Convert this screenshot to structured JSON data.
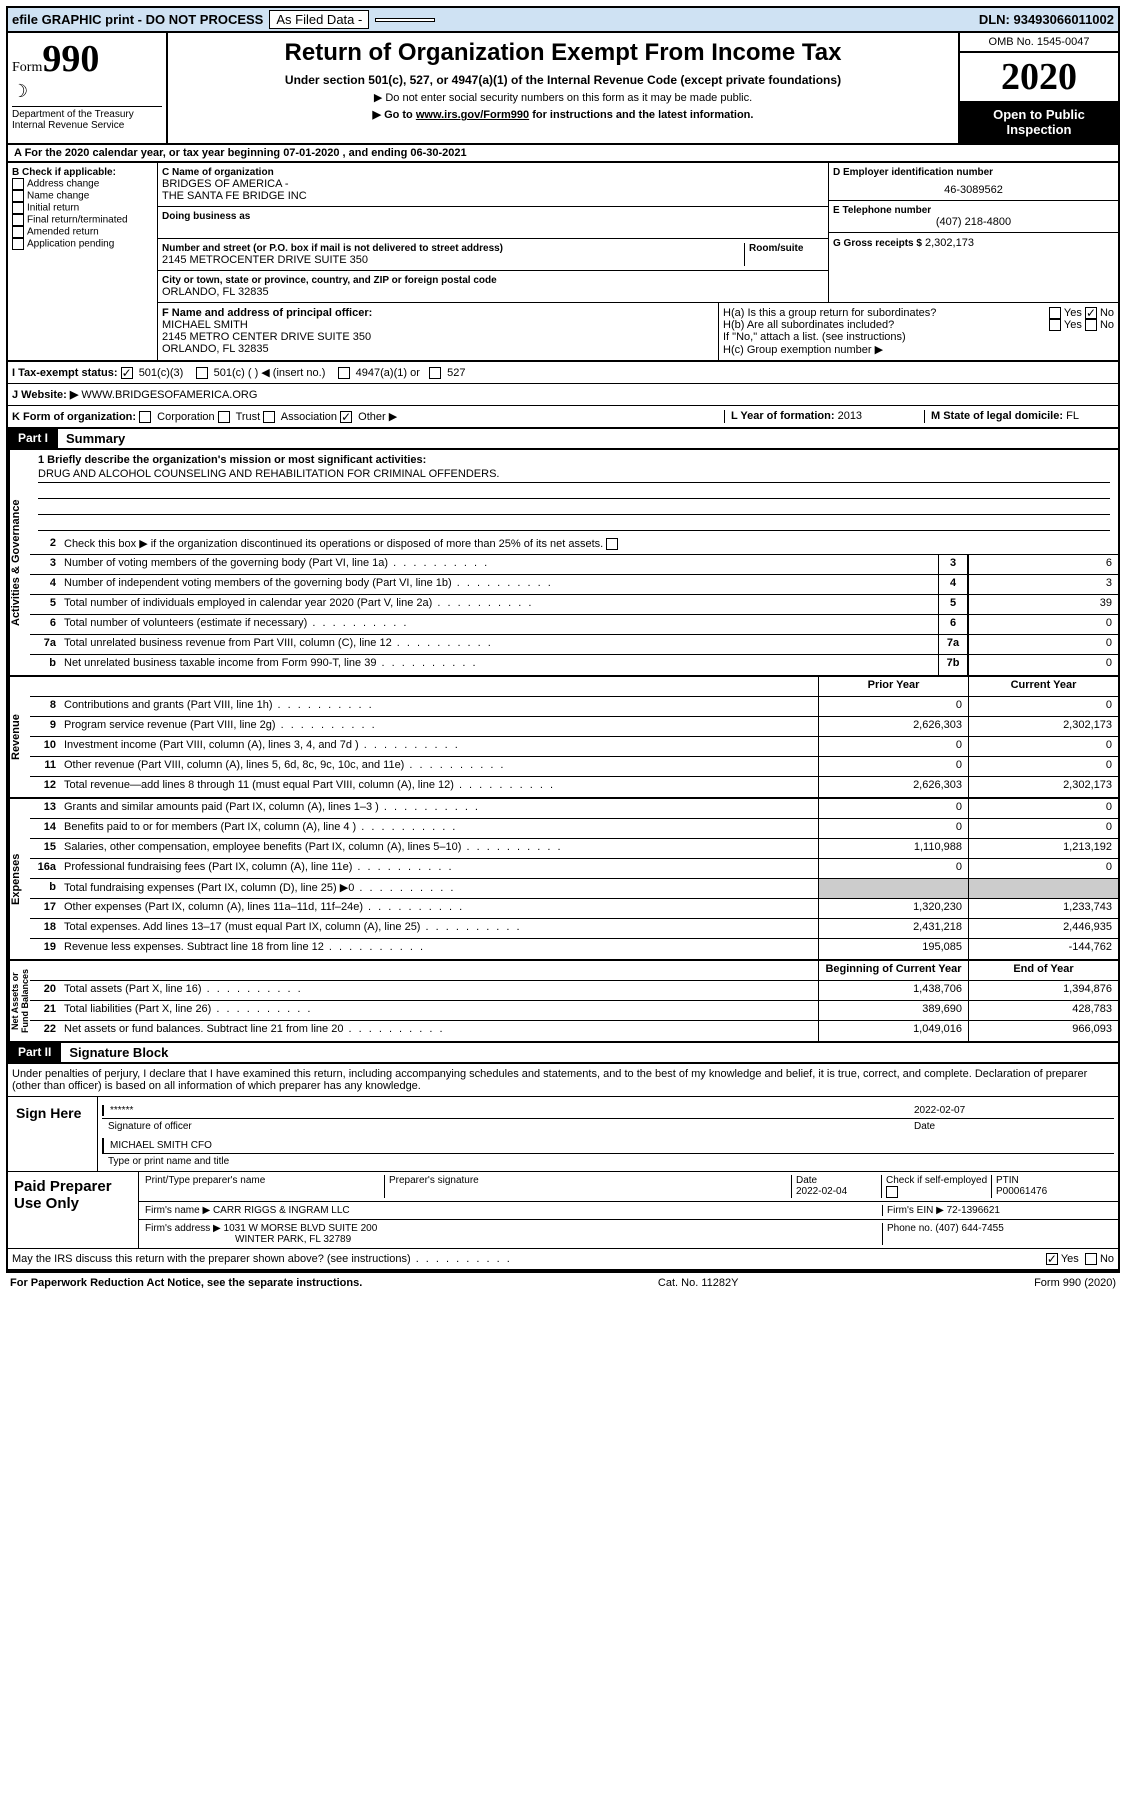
{
  "topbar": {
    "efile": "efile GRAPHIC print - DO NOT PROCESS",
    "asfiled": "As Filed Data -",
    "dln_label": "DLN:",
    "dln": "93493066011002"
  },
  "header": {
    "form_label": "Form",
    "form_num": "990",
    "dept1": "Department of the Treasury",
    "dept2": "Internal Revenue Service",
    "title": "Return of Organization Exempt From Income Tax",
    "sub": "Under section 501(c), 527, or 4947(a)(1) of the Internal Revenue Code (except private foundations)",
    "sub2a": "▶ Do not enter social security numbers on this form as it may be made public.",
    "sub2b": "▶ Go to ",
    "sub2b_link": "www.irs.gov/Form990",
    "sub2b_tail": " for instructions and the latest information.",
    "omb": "OMB No. 1545-0047",
    "year": "2020",
    "open": "Open to Public Inspection"
  },
  "row_a": "A  For the 2020 calendar year, or tax year beginning 07-01-2020   , and ending 06-30-2021",
  "section_b": {
    "hdr": "B Check if applicable:",
    "items": [
      "Address change",
      "Name change",
      "Initial return",
      "Final return/terminated",
      "Amended return",
      "Application pending"
    ]
  },
  "section_c": {
    "lbl_name": "C Name of organization",
    "name1": "BRIDGES OF AMERICA -",
    "name2": "THE SANTA FE BRIDGE INC",
    "lbl_dba": "Doing business as",
    "lbl_addr": "Number and street (or P.O. box if mail is not delivered to street address)",
    "lbl_room": "Room/suite",
    "addr": "2145 METROCENTER DRIVE SUITE 350",
    "lbl_city": "City or town, state or province, country, and ZIP or foreign postal code",
    "city": "ORLANDO, FL  32835"
  },
  "section_d": {
    "lbl": "D Employer identification number",
    "val": "46-3089562"
  },
  "section_e": {
    "lbl": "E Telephone number",
    "val": "(407) 218-4800"
  },
  "section_g": {
    "lbl": "G Gross receipts $",
    "val": "2,302,173"
  },
  "section_f": {
    "lbl": "F  Name and address of principal officer:",
    "name": "MICHAEL SMITH",
    "addr1": "2145 METRO CENTER DRIVE SUITE 350",
    "addr2": "ORLANDO, FL  32835"
  },
  "section_h": {
    "ha": "H(a)  Is this a group return for subordinates?",
    "hb": "H(b)  Are all subordinates included?",
    "hb_note": "If \"No,\" attach a list. (see instructions)",
    "hc": "H(c)  Group exemption number ▶"
  },
  "section_i": {
    "lbl": "I   Tax-exempt status:",
    "o1": "501(c)(3)",
    "o2": "501(c) (  ) ◀ (insert no.)",
    "o3": "4947(a)(1) or",
    "o4": "527"
  },
  "section_j": {
    "lbl": "J   Website: ▶",
    "val": "WWW.BRIDGESOFAMERICA.ORG"
  },
  "section_k": {
    "lbl": "K Form of organization:",
    "o1": "Corporation",
    "o2": "Trust",
    "o3": "Association",
    "o4": "Other ▶"
  },
  "section_l": {
    "lbl": "L Year of formation:",
    "val": "2013"
  },
  "section_m": {
    "lbl": "M State of legal domicile:",
    "val": "FL"
  },
  "part1": {
    "tag": "Part I",
    "title": "Summary",
    "q1": "1  Briefly describe the organization's mission or most significant activities:",
    "mission": "DRUG AND ALCOHOL COUNSELING AND REHABILITATION FOR CRIMINAL OFFENDERS.",
    "q2": "Check this box ▶       if the organization discontinued its operations or disposed of more than 25% of its net assets.",
    "lines_gov": [
      {
        "n": "3",
        "d": "Number of voting members of the governing body (Part VI, line 1a)",
        "b": "3",
        "v": "6"
      },
      {
        "n": "4",
        "d": "Number of independent voting members of the governing body (Part VI, line 1b)",
        "b": "4",
        "v": "3"
      },
      {
        "n": "5",
        "d": "Total number of individuals employed in calendar year 2020 (Part V, line 2a)",
        "b": "5",
        "v": "39"
      },
      {
        "n": "6",
        "d": "Total number of volunteers (estimate if necessary)",
        "b": "6",
        "v": "0"
      },
      {
        "n": "7a",
        "d": "Total unrelated business revenue from Part VIII, column (C), line 12",
        "b": "7a",
        "v": "0"
      },
      {
        "n": "b",
        "d": "Net unrelated business taxable income from Form 990-T, line 39",
        "b": "7b",
        "v": "0"
      }
    ],
    "hdr_prior": "Prior Year",
    "hdr_curr": "Current Year",
    "lines_rev": [
      {
        "n": "8",
        "d": "Contributions and grants (Part VIII, line 1h)",
        "p": "0",
        "c": "0"
      },
      {
        "n": "9",
        "d": "Program service revenue (Part VIII, line 2g)",
        "p": "2,626,303",
        "c": "2,302,173"
      },
      {
        "n": "10",
        "d": "Investment income (Part VIII, column (A), lines 3, 4, and 7d )",
        "p": "0",
        "c": "0"
      },
      {
        "n": "11",
        "d": "Other revenue (Part VIII, column (A), lines 5, 6d, 8c, 9c, 10c, and 11e)",
        "p": "0",
        "c": "0"
      },
      {
        "n": "12",
        "d": "Total revenue—add lines 8 through 11 (must equal Part VIII, column (A), line 12)",
        "p": "2,626,303",
        "c": "2,302,173"
      }
    ],
    "lines_exp": [
      {
        "n": "13",
        "d": "Grants and similar amounts paid (Part IX, column (A), lines 1–3 )",
        "p": "0",
        "c": "0"
      },
      {
        "n": "14",
        "d": "Benefits paid to or for members (Part IX, column (A), line 4 )",
        "p": "0",
        "c": "0"
      },
      {
        "n": "15",
        "d": "Salaries, other compensation, employee benefits (Part IX, column (A), lines 5–10)",
        "p": "1,110,988",
        "c": "1,213,192"
      },
      {
        "n": "16a",
        "d": "Professional fundraising fees (Part IX, column (A), line 11e)",
        "p": "0",
        "c": "0"
      },
      {
        "n": "b",
        "d": "Total fundraising expenses (Part IX, column (D), line 25) ▶0",
        "p": "",
        "c": "",
        "shade": true
      },
      {
        "n": "17",
        "d": "Other expenses (Part IX, column (A), lines 11a–11d, 11f–24e)",
        "p": "1,320,230",
        "c": "1,233,743"
      },
      {
        "n": "18",
        "d": "Total expenses. Add lines 13–17 (must equal Part IX, column (A), line 25)",
        "p": "2,431,218",
        "c": "2,446,935"
      },
      {
        "n": "19",
        "d": "Revenue less expenses. Subtract line 18 from line 12",
        "p": "195,085",
        "c": "-144,762"
      }
    ],
    "hdr_beg": "Beginning of Current Year",
    "hdr_end": "End of Year",
    "lines_na": [
      {
        "n": "20",
        "d": "Total assets (Part X, line 16)",
        "p": "1,438,706",
        "c": "1,394,876"
      },
      {
        "n": "21",
        "d": "Total liabilities (Part X, line 26)",
        "p": "389,690",
        "c": "428,783"
      },
      {
        "n": "22",
        "d": "Net assets or fund balances. Subtract line 21 from line 20",
        "p": "1,049,016",
        "c": "966,093"
      }
    ]
  },
  "part2": {
    "tag": "Part II",
    "title": "Signature Block",
    "decl": "Under penalties of perjury, I declare that I have examined this return, including accompanying schedules and statements, and to the best of my knowledge and belief, it is true, correct, and complete. Declaration of preparer (other than officer) is based on all information of which preparer has any knowledge.",
    "sign_here": "Sign Here",
    "stars": "******",
    "sig_of": "Signature of officer",
    "date_lbl": "Date",
    "date": "2022-02-07",
    "officer": "MICHAEL SMITH CFO",
    "type_lbl": "Type or print name and title",
    "paid": "Paid Preparer Use Only",
    "pp_name_lbl": "Print/Type preparer's name",
    "pp_sig_lbl": "Preparer's signature",
    "pp_date": "2022-02-04",
    "pp_check": "Check        if self-employed",
    "ptin_lbl": "PTIN",
    "ptin": "P00061476",
    "firm_name_lbl": "Firm's name   ▶",
    "firm_name": "CARR RIGGS & INGRAM LLC",
    "firm_ein_lbl": "Firm's EIN ▶",
    "firm_ein": "72-1396621",
    "firm_addr_lbl": "Firm's address ▶",
    "firm_addr1": "1031 W MORSE BLVD SUITE 200",
    "firm_addr2": "WINTER PARK, FL  32789",
    "phone_lbl": "Phone no.",
    "phone": "(407) 644-7455",
    "discuss": "May the IRS discuss this return with the preparer shown above? (see instructions)"
  },
  "footer": {
    "pra": "For Paperwork Reduction Act Notice, see the separate instructions.",
    "cat": "Cat. No. 11282Y",
    "form": "Form 990 (2020)"
  },
  "labels": {
    "yes": "Yes",
    "no": "No"
  }
}
